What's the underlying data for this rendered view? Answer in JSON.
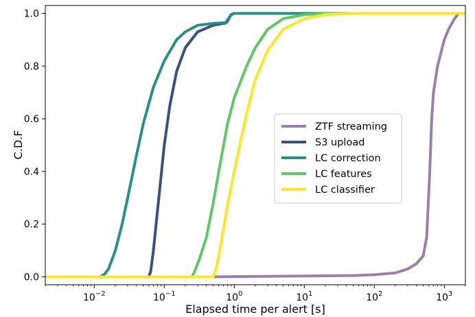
{
  "chart_data": {
    "type": "line",
    "xlabel": "Elapsed time per alert [s]",
    "ylabel": "C.D.F",
    "xscale": "log",
    "xlim": [
      0.002,
      2000
    ],
    "ylim": [
      -0.03,
      1.03
    ],
    "x_ticks": [
      {
        "value": 0.01,
        "label": "10",
        "exp": "−2"
      },
      {
        "value": 0.1,
        "label": "10",
        "exp": "−1"
      },
      {
        "value": 1,
        "label": "10",
        "exp": "0"
      },
      {
        "value": 10,
        "label": "10",
        "exp": "1"
      },
      {
        "value": 100,
        "label": "10",
        "exp": "2"
      },
      {
        "value": 1000,
        "label": "10",
        "exp": "3"
      }
    ],
    "y_ticks": [
      {
        "value": 0.0,
        "label": "0.0"
      },
      {
        "value": 0.2,
        "label": "0.2"
      },
      {
        "value": 0.4,
        "label": "0.4"
      },
      {
        "value": 0.6,
        "label": "0.6"
      },
      {
        "value": 0.8,
        "label": "0.8"
      },
      {
        "value": 1.0,
        "label": "1.0"
      }
    ],
    "legend_position": "center-right",
    "series": [
      {
        "name": "ZTF streaming",
        "color": "#9b7fa8",
        "points": [
          [
            0.002,
            0
          ],
          [
            0.5,
            0
          ],
          [
            1,
            0.001
          ],
          [
            10,
            0.003
          ],
          [
            50,
            0.005
          ],
          [
            100,
            0.008
          ],
          [
            200,
            0.015
          ],
          [
            300,
            0.03
          ],
          [
            400,
            0.05
          ],
          [
            500,
            0.08
          ],
          [
            560,
            0.15
          ],
          [
            620,
            0.4
          ],
          [
            660,
            0.6
          ],
          [
            700,
            0.7
          ],
          [
            800,
            0.8
          ],
          [
            1000,
            0.9
          ],
          [
            1150,
            0.94
          ],
          [
            1400,
            0.98
          ],
          [
            1600,
            1.0
          ],
          [
            2000,
            1.0
          ]
        ]
      },
      {
        "name": "S3 upload",
        "color": "#3b4e85",
        "points": [
          [
            0.002,
            0
          ],
          [
            0.06,
            0
          ],
          [
            0.064,
            0.02
          ],
          [
            0.07,
            0.1
          ],
          [
            0.08,
            0.25
          ],
          [
            0.09,
            0.38
          ],
          [
            0.1,
            0.5
          ],
          [
            0.12,
            0.65
          ],
          [
            0.15,
            0.78
          ],
          [
            0.2,
            0.87
          ],
          [
            0.3,
            0.93
          ],
          [
            0.5,
            0.955
          ],
          [
            0.75,
            0.963
          ],
          [
            0.8,
            0.97
          ],
          [
            0.9,
            0.995
          ],
          [
            1,
            1.0
          ],
          [
            2000,
            1.0
          ]
        ]
      },
      {
        "name": "LC correction",
        "color": "#268f8a",
        "points": [
          [
            0.002,
            0
          ],
          [
            0.012,
            0
          ],
          [
            0.014,
            0.01
          ],
          [
            0.016,
            0.03
          ],
          [
            0.02,
            0.1
          ],
          [
            0.025,
            0.2
          ],
          [
            0.03,
            0.3
          ],
          [
            0.04,
            0.46
          ],
          [
            0.05,
            0.58
          ],
          [
            0.07,
            0.72
          ],
          [
            0.1,
            0.82
          ],
          [
            0.15,
            0.9
          ],
          [
            0.2,
            0.93
          ],
          [
            0.3,
            0.955
          ],
          [
            0.5,
            0.962
          ],
          [
            0.75,
            0.965
          ],
          [
            0.8,
            0.975
          ],
          [
            0.9,
            0.995
          ],
          [
            1,
            1.0
          ],
          [
            2000,
            1.0
          ]
        ]
      },
      {
        "name": "LC features",
        "color": "#5ec962",
        "points": [
          [
            0.002,
            0
          ],
          [
            0.25,
            0
          ],
          [
            0.28,
            0.03
          ],
          [
            0.32,
            0.07
          ],
          [
            0.4,
            0.15
          ],
          [
            0.5,
            0.28
          ],
          [
            0.6,
            0.4
          ],
          [
            0.8,
            0.58
          ],
          [
            1,
            0.68
          ],
          [
            1.5,
            0.8
          ],
          [
            2,
            0.87
          ],
          [
            3,
            0.94
          ],
          [
            5,
            0.98
          ],
          [
            10,
            0.995
          ],
          [
            20,
            1.0
          ],
          [
            2000,
            1.0
          ]
        ]
      },
      {
        "name": "LC classifier",
        "color": "#fde725",
        "points": [
          [
            0.002,
            0
          ],
          [
            0.5,
            0
          ],
          [
            0.55,
            0.03
          ],
          [
            0.6,
            0.08
          ],
          [
            0.7,
            0.18
          ],
          [
            0.8,
            0.27
          ],
          [
            0.9,
            0.34
          ],
          [
            1,
            0.4
          ],
          [
            1.2,
            0.5
          ],
          [
            1.5,
            0.62
          ],
          [
            2,
            0.75
          ],
          [
            3,
            0.86
          ],
          [
            5,
            0.94
          ],
          [
            10,
            0.98
          ],
          [
            20,
            0.995
          ],
          [
            50,
            1.0
          ],
          [
            2000,
            1.0
          ]
        ]
      }
    ]
  }
}
